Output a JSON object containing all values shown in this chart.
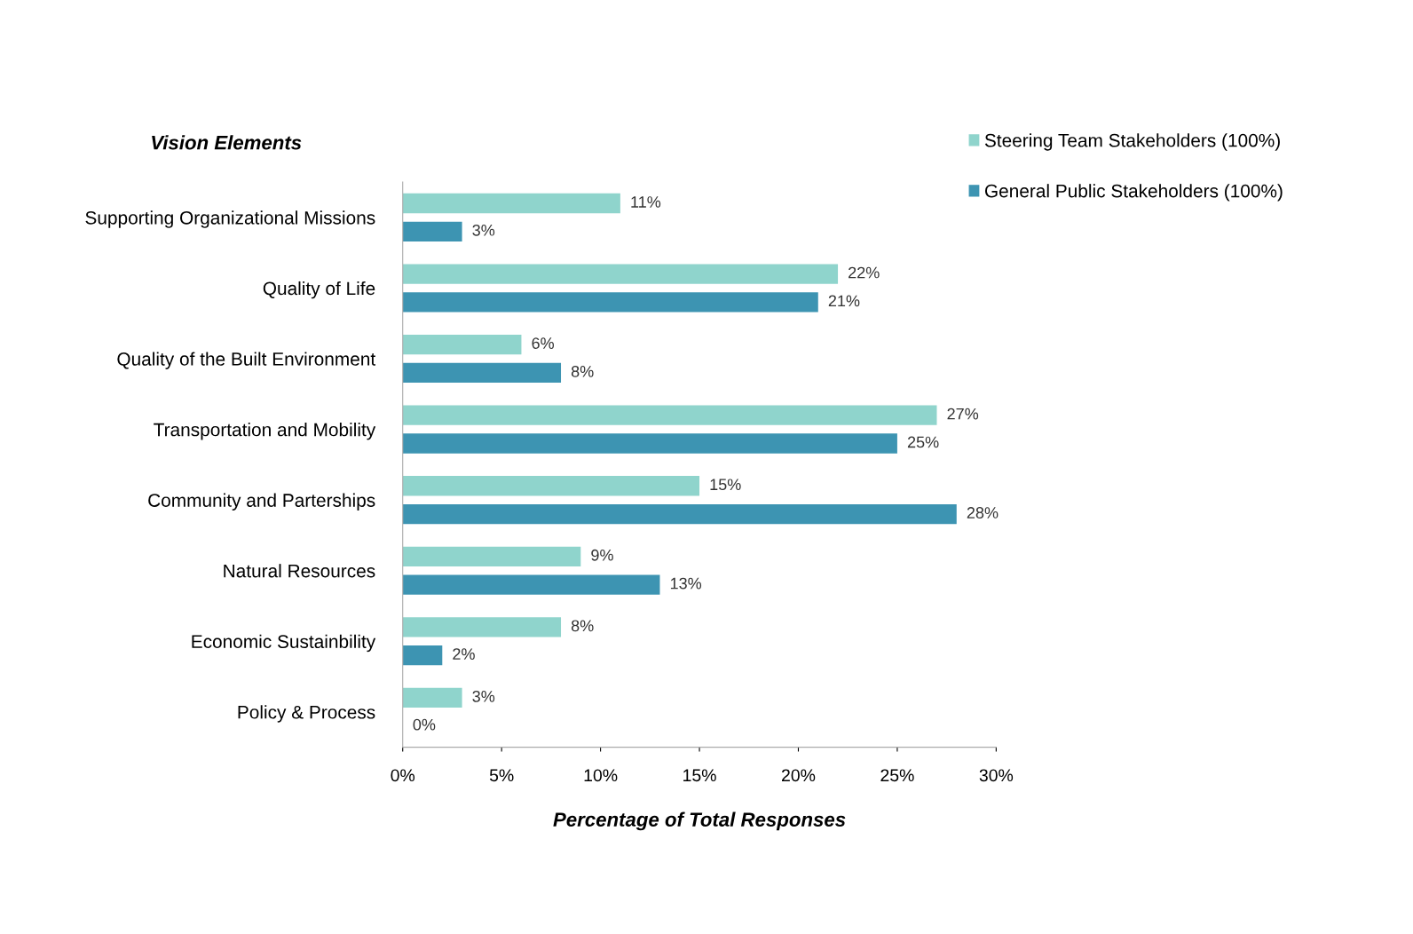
{
  "chart_data": {
    "type": "bar",
    "orientation": "horizontal",
    "xlabel": "Percentage of Total Responses",
    "ylabel": "Vision Elements",
    "categories": [
      "Supporting Organizational Missions",
      "Quality of Life",
      "Quality of the Built Environment",
      "Transportation and Mobility",
      "Community and Parterships",
      "Natural Resources",
      "Economic Sustainbility",
      "Policy & Process"
    ],
    "series": [
      {
        "name": "Steering Team Stakeholders (100%)",
        "color": "#8fd4cc",
        "values": [
          11,
          22,
          6,
          27,
          15,
          9,
          8,
          3
        ],
        "value_labels": [
          "11%",
          "22%",
          "6%",
          "27%",
          "15%",
          "9%",
          "8%",
          "3%"
        ]
      },
      {
        "name": "General Public Stakeholders (100%)",
        "color": "#3d94b2",
        "values": [
          3,
          21,
          8,
          25,
          28,
          13,
          2,
          0
        ],
        "value_labels": [
          "3%",
          "21%",
          "8%",
          "25%",
          "28%",
          "13%",
          "2%",
          "0%"
        ]
      }
    ],
    "xlim": [
      0,
      30
    ],
    "xticks": [
      {
        "value": 0,
        "label": "0%"
      },
      {
        "value": 5,
        "label": "5%"
      },
      {
        "value": 10,
        "label": "10%"
      },
      {
        "value": 15,
        "label": "15%"
      },
      {
        "value": 20,
        "label": "20%"
      },
      {
        "value": 25,
        "label": "25%"
      },
      {
        "value": 30,
        "label": "30%"
      }
    ],
    "grid": false,
    "legend": "top right"
  }
}
